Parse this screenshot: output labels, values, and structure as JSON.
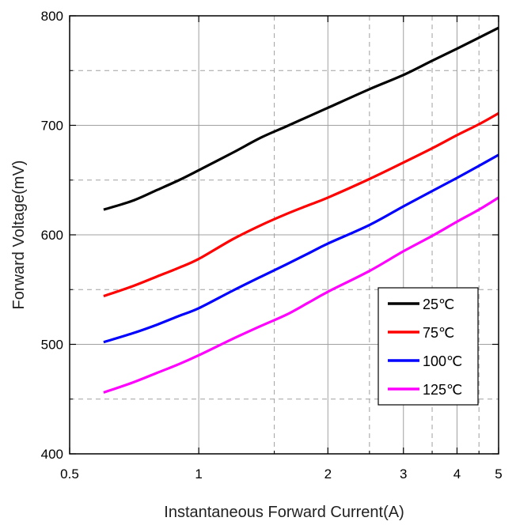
{
  "chart_data": {
    "type": "line",
    "title": "",
    "xlabel": "Instantaneous Forward Current(A)",
    "ylabel": "Forward Voltage(mV)",
    "xscale": "log",
    "xlim": [
      0.5,
      5
    ],
    "ylim": [
      400,
      800
    ],
    "x_ticks": [
      0.5,
      1,
      2,
      3,
      4,
      5
    ],
    "x_tick_labels": [
      "0.5",
      "1",
      "2",
      "3",
      "4",
      "5"
    ],
    "y_ticks": [
      400,
      500,
      600,
      700,
      800
    ],
    "y_tick_labels": [
      "400",
      "500",
      "600",
      "700",
      "800"
    ],
    "grid": true,
    "legend_position": "bottom-right",
    "x": [
      0.6,
      0.7,
      0.8,
      0.9,
      1.0,
      1.2,
      1.4,
      1.6,
      1.8,
      2.0,
      2.5,
      3.0,
      3.5,
      4.0,
      4.5,
      5.0
    ],
    "series": [
      {
        "name": "25℃",
        "color": "#000000",
        "values": [
          623,
          631,
          641,
          650,
          659,
          675,
          689,
          699,
          708,
          716,
          733,
          746,
          759,
          770,
          780,
          789
        ]
      },
      {
        "name": "75℃",
        "color": "#ff0000",
        "values": [
          544,
          553,
          562,
          570,
          578,
          596,
          609,
          619,
          627,
          634,
          651,
          666,
          679,
          691,
          701,
          711
        ]
      },
      {
        "name": "100℃",
        "color": "#0000ff",
        "values": [
          502,
          510,
          518,
          526,
          533,
          549,
          562,
          573,
          583,
          592,
          609,
          626,
          640,
          652,
          663,
          673
        ]
      },
      {
        "name": "125℃",
        "color": "#ff00ff",
        "values": [
          456,
          465,
          474,
          482,
          490,
          505,
          517,
          527,
          538,
          548,
          567,
          585,
          599,
          612,
          623,
          634
        ]
      }
    ]
  }
}
